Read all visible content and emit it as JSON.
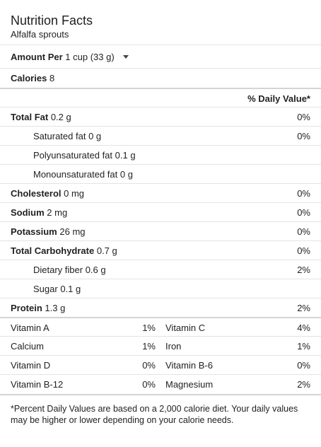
{
  "header": {
    "title": "Nutrition Facts",
    "subtitle": "Alfalfa sprouts"
  },
  "amount": {
    "label": "Amount Per",
    "serving": "1 cup (33 g)"
  },
  "calories": {
    "label": "Calories",
    "value": "8"
  },
  "daily_value_header": "% Daily Value*",
  "nutrients": [
    {
      "label": "Total Fat",
      "value": "0.2 g",
      "pct": "0%"
    },
    {
      "label": "Saturated fat",
      "value": "0 g",
      "pct": "0%"
    },
    {
      "label": "Polyunsaturated fat",
      "value": "0.1 g",
      "pct": ""
    },
    {
      "label": "Monounsaturated fat",
      "value": "0 g",
      "pct": ""
    },
    {
      "label": "Cholesterol",
      "value": "0 mg",
      "pct": "0%"
    },
    {
      "label": "Sodium",
      "value": "2 mg",
      "pct": "0%"
    },
    {
      "label": "Potassium",
      "value": "26 mg",
      "pct": "0%"
    },
    {
      "label": "Total Carbohydrate",
      "value": "0.7 g",
      "pct": "0%"
    },
    {
      "label": "Dietary fiber",
      "value": "0.6 g",
      "pct": "2%"
    },
    {
      "label": "Sugar",
      "value": "0.1 g",
      "pct": ""
    },
    {
      "label": "Protein",
      "value": "1.3 g",
      "pct": "2%"
    }
  ],
  "vitamins": [
    {
      "left": "Vitamin A",
      "left_pct": "1%",
      "right": "Vitamin C",
      "right_pct": "4%"
    },
    {
      "left": "Calcium",
      "left_pct": "1%",
      "right": "Iron",
      "right_pct": "1%"
    },
    {
      "left": "Vitamin D",
      "left_pct": "0%",
      "right": "Vitamin B-6",
      "right_pct": "0%"
    },
    {
      "left": "Vitamin B-12",
      "left_pct": "0%",
      "right": "Magnesium",
      "right_pct": "2%"
    }
  ],
  "footnote": "*Percent Daily Values are based on a 2,000 calorie diet. Your daily values may be higher or lower depending on your calorie needs."
}
